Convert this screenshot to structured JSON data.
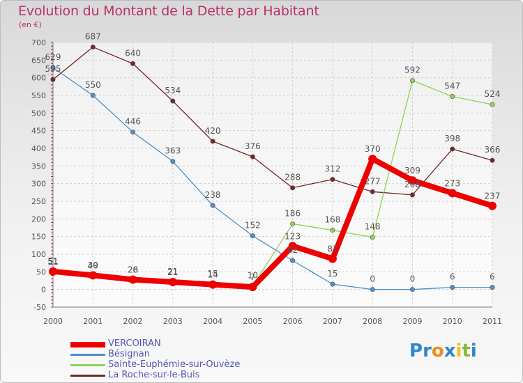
{
  "header": {
    "title": "Evolution du Montant de la Dette par Habitant",
    "unit": "(en €)"
  },
  "chart_data": {
    "type": "line",
    "title": "Evolution du Montant de la Dette par Habitant",
    "subtitle": "(en €)",
    "xlabel": "",
    "ylabel": "",
    "categories": [
      "2000",
      "2001",
      "2002",
      "2003",
      "2004",
      "2005",
      "2006",
      "2007",
      "2008",
      "2009",
      "2010",
      "2011"
    ],
    "ylim": [
      -50,
      700
    ],
    "yticks": [
      -50,
      0,
      50,
      100,
      150,
      200,
      250,
      300,
      350,
      400,
      450,
      500,
      550,
      600,
      650,
      700
    ],
    "ytick_labels": [
      "-50",
      "0",
      "50",
      "100",
      "150",
      "200",
      "250",
      "300",
      "350",
      "400",
      "450",
      "500",
      "550",
      "600",
      "650",
      "700"
    ],
    "grid": true,
    "legend_position": "bottom-left",
    "series": [
      {
        "name": "La Roche-sur-le-Buis",
        "color": "#722828",
        "values": [
          595,
          687,
          640,
          534,
          420,
          376,
          288,
          312,
          277,
          268,
          398,
          366
        ],
        "labels": [
          "595",
          "687",
          "640",
          "534",
          "420",
          "376",
          "288",
          "312",
          "277",
          "268",
          "398",
          "366"
        ]
      },
      {
        "name": "Bésignan",
        "color": "#4d8fcb",
        "values": [
          629,
          550,
          446,
          363,
          238,
          152,
          82,
          15,
          0,
          0,
          6,
          6
        ],
        "labels": [
          "629",
          "550",
          "446",
          "363",
          "238",
          "152",
          "82",
          "15",
          "0",
          "0",
          "6",
          "6"
        ]
      },
      {
        "name": "Sainte-Euphémie-sur-Ouvèze",
        "color": "#8ed157",
        "values": [
          51,
          39,
          26,
          21,
          15,
          10,
          186,
          168,
          148,
          592,
          547,
          524
        ],
        "labels": [
          "51",
          "39",
          "26",
          "21",
          "15",
          "10",
          "186",
          "168",
          "148",
          "592",
          "547",
          "524"
        ]
      },
      {
        "name": "VERCOIRAN",
        "color": "#ee0000",
        "values": [
          51,
          40,
          28,
          21,
          14,
          7,
          123,
          87,
          370,
          309,
          273,
          237
        ],
        "labels": [
          "51",
          "40",
          "28",
          "21",
          "14",
          "7",
          "123",
          "87",
          "370",
          "309",
          "273",
          "237"
        ]
      }
    ]
  },
  "legend": {
    "items": [
      {
        "label": "VERCOIRAN",
        "color": "#ee0000",
        "thick": true
      },
      {
        "label": "Bésignan",
        "color": "#4d8fcb",
        "thick": false
      },
      {
        "label": "Sainte-Euphémie-sur-Ouvèze",
        "color": "#8ed157",
        "thick": false
      },
      {
        "label": "La Roche-sur-le-Buis",
        "color": "#722828",
        "thick": false
      }
    ]
  },
  "logo": {
    "text": "Proxiti",
    "letters": [
      "P",
      "r",
      "o",
      "x",
      "i",
      "t",
      "i"
    ],
    "colors": [
      "#2f86c9",
      "#2f86c9",
      "#f08a1c",
      "#2f86c9",
      "#f0c21c",
      "#8ab83a",
      "#2f86c9"
    ]
  }
}
